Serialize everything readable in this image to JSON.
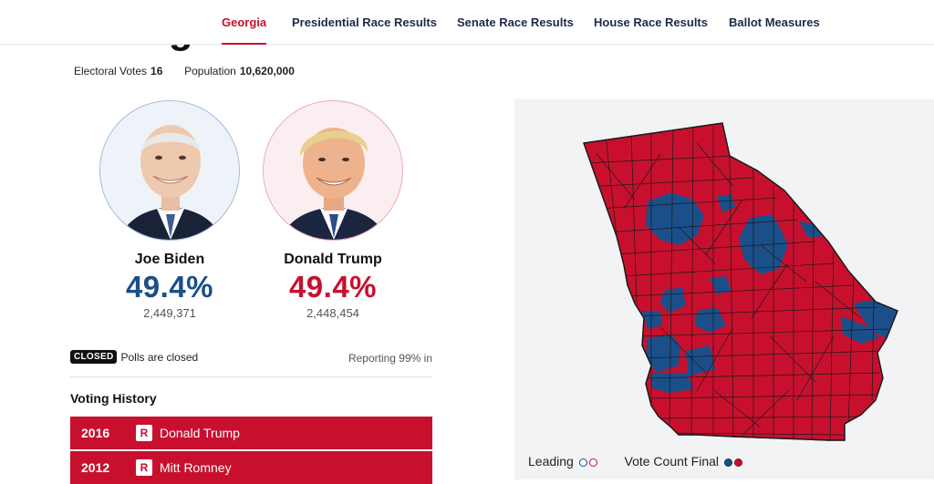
{
  "nav": {
    "tabs": [
      {
        "label": "Georgia",
        "active": true
      },
      {
        "label": "Presidential Race Results"
      },
      {
        "label": "Senate Race Results"
      },
      {
        "label": "House Race Results"
      },
      {
        "label": "Ballot Measures"
      }
    ]
  },
  "state": {
    "title": "Georgia",
    "electoral_votes_label": "Electoral Votes",
    "electoral_votes": "16",
    "population_label": "Population",
    "population": "10,620,000"
  },
  "candidates": [
    {
      "name": "Joe Biden",
      "percent": "49.4%",
      "votes": "2,449,371",
      "party_color": "#1b4f8a"
    },
    {
      "name": "Donald Trump",
      "percent": "49.4%",
      "votes": "2,448,454",
      "party_color": "#c8102e"
    }
  ],
  "status": {
    "badge": "CLOSED",
    "text": "Polls are closed",
    "reporting": "Reporting 99% in"
  },
  "voting_history": {
    "title": "Voting History",
    "rows": [
      {
        "year": "2016",
        "party": "R",
        "winner": "Donald Trump"
      },
      {
        "year": "2012",
        "party": "R",
        "winner": "Mitt Romney"
      }
    ]
  },
  "map": {
    "colors": {
      "dem": "#1b4f8a",
      "rep": "#c8102e",
      "background": "#f2f3f5"
    }
  },
  "legend": {
    "leading_label": "Leading",
    "final_label": "Vote Count Final"
  }
}
